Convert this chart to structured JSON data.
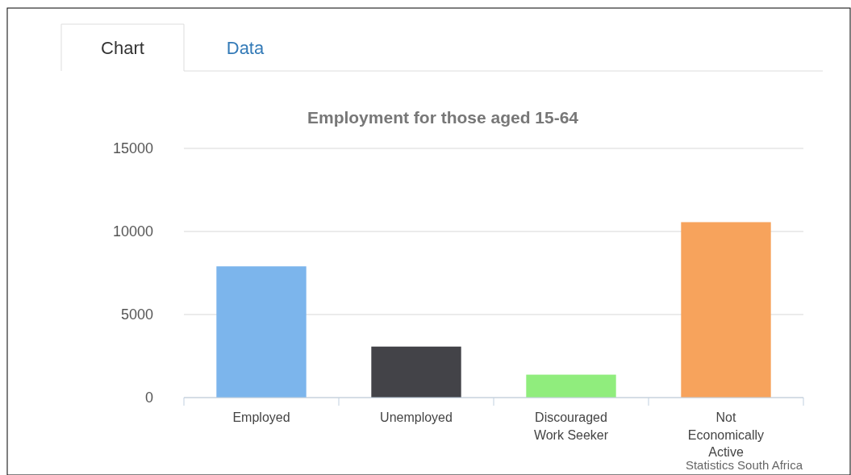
{
  "chart_data": {
    "type": "bar",
    "title": "Employment for those aged 15-64",
    "categories": [
      "Employed",
      "Unemployed",
      "Discouraged Work Seeker",
      "Not Economically Active"
    ],
    "values": [
      7900,
      3070,
      1380,
      10560
    ],
    "colors": [
      "#7cb5ec",
      "#434348",
      "#90ed7d",
      "#f7a35c"
    ],
    "ylim": [
      0,
      15000
    ],
    "yticks": [
      0,
      5000,
      10000,
      15000
    ],
    "grid": "y",
    "annotations": [
      "Chart",
      "Data",
      "Statistics South Africa"
    ]
  }
}
